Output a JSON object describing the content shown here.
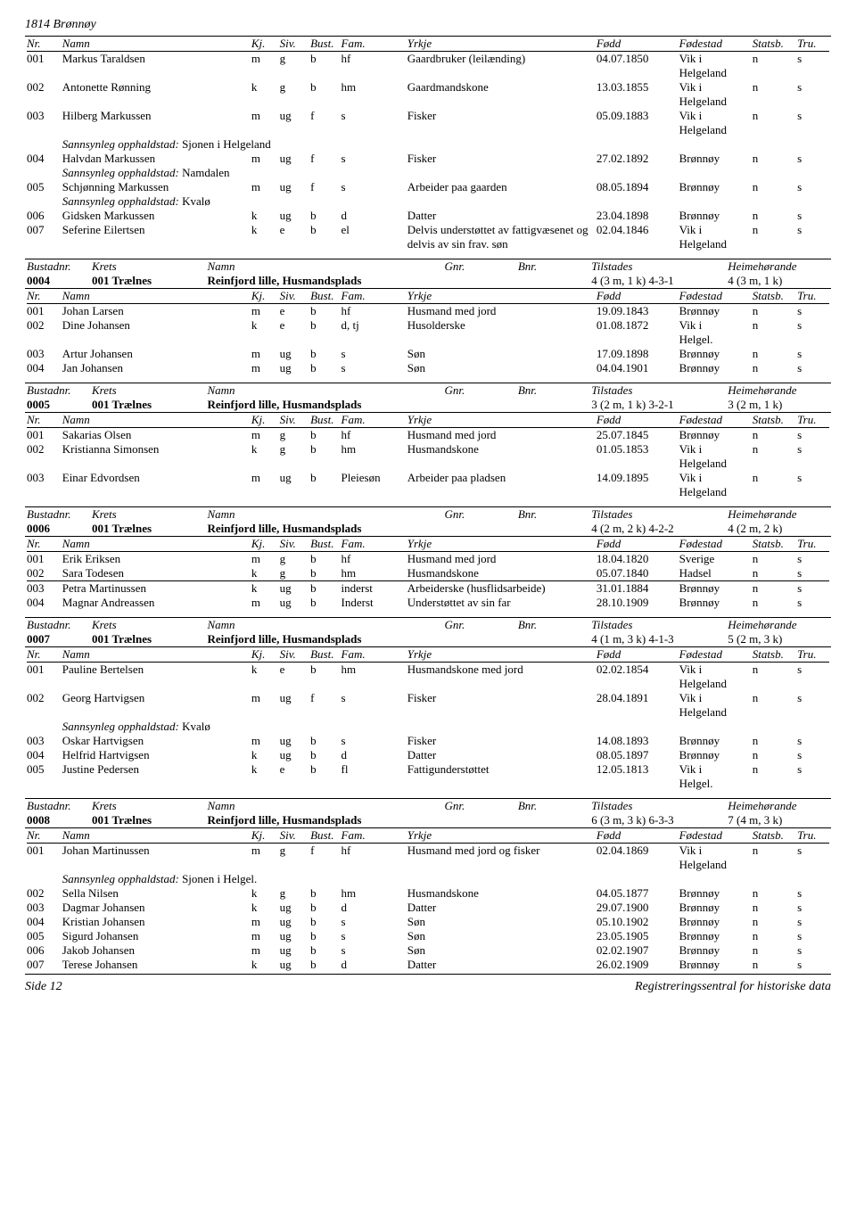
{
  "pageHeader": "1814 Brønnøy",
  "footerLeft": "Side 12",
  "footerRight": "Registreringssentral for historiske data",
  "personHeader": {
    "nr": "Nr.",
    "namn": "Namn",
    "kj": "Kj.",
    "siv": "Siv.",
    "bust": "Bust.",
    "fam": "Fam.",
    "yrkje": "Yrkje",
    "fodd": "Fødd",
    "fodestad": "Fødestad",
    "statsb": "Statsb.",
    "tru": "Tru."
  },
  "bustadHeader": {
    "bustadnr": "Bustadnr.",
    "krets": "Krets",
    "namn": "Namn",
    "gnr": "Gnr.",
    "bnr": "Bnr.",
    "tilstades": "Tilstades",
    "heimehorande": "Heimehørande"
  },
  "sannsynlegLabel": "Sannsynleg opphaldstad:",
  "topPeople": [
    {
      "nr": "001",
      "namn": "Markus Taraldsen",
      "kj": "m",
      "siv": "g",
      "bust": "b",
      "fam": "hf",
      "yrkje": "Gaardbruker (leilænding)",
      "fodd": "04.07.1850",
      "fodestad": "Vik i Helgeland",
      "statsb": "n",
      "tru": "s"
    },
    {
      "nr": "002",
      "namn": "Antonette Rønning",
      "kj": "k",
      "siv": "g",
      "bust": "b",
      "fam": "hm",
      "yrkje": "Gaardmandskone",
      "fodd": "13.03.1855",
      "fodestad": "Vik i Helgeland",
      "statsb": "n",
      "tru": "s"
    },
    {
      "nr": "003",
      "namn": "Hilberg Markussen",
      "kj": "m",
      "siv": "ug",
      "bust": "f",
      "fam": "s",
      "yrkje": "Fisker",
      "fodd": "05.09.1883",
      "fodestad": "Vik i Helgeland",
      "statsb": "n",
      "tru": "s",
      "sann": "Sjonen i Helgeland"
    },
    {
      "nr": "004",
      "namn": "Halvdan Markussen",
      "kj": "m",
      "siv": "ug",
      "bust": "f",
      "fam": "s",
      "yrkje": "Fisker",
      "fodd": "27.02.1892",
      "fodestad": "Brønnøy",
      "statsb": "n",
      "tru": "s",
      "sann": "Namdalen"
    },
    {
      "nr": "005",
      "namn": "Schjønning Markussen",
      "kj": "m",
      "siv": "ug",
      "bust": "f",
      "fam": "s",
      "yrkje": "Arbeider paa gaarden",
      "fodd": "08.05.1894",
      "fodestad": "Brønnøy",
      "statsb": "n",
      "tru": "s",
      "sann": "Kvalø"
    },
    {
      "nr": "006",
      "namn": "Gidsken Markussen",
      "kj": "k",
      "siv": "ug",
      "bust": "b",
      "fam": "d",
      "yrkje": "Datter",
      "fodd": "23.04.1898",
      "fodestad": "Brønnøy",
      "statsb": "n",
      "tru": "s"
    },
    {
      "nr": "007",
      "namn": "Seferine Eilertsen",
      "kj": "k",
      "siv": "e",
      "bust": "b",
      "fam": "el",
      "yrkje": "Delvis understøttet av fattigvæsenet og delvis av sin frav. søn",
      "fodd": "02.04.1846",
      "fodestad": "Vik i Helgeland",
      "statsb": "n",
      "tru": "s"
    }
  ],
  "blocks": [
    {
      "bustad": {
        "nr": "0004",
        "krets": "001 Trælnes",
        "namn": "Reinfjord lille, Husmandsplads",
        "tilstades": "4 (3 m, 1 k) 4-3-1",
        "heime": "4 (3 m, 1 k)"
      },
      "people": [
        {
          "nr": "001",
          "namn": "Johan Larsen",
          "kj": "m",
          "siv": "e",
          "bust": "b",
          "fam": "hf",
          "yrkje": "Husmand med jord",
          "fodd": "19.09.1843",
          "fodestad": "Brønnøy",
          "statsb": "n",
          "tru": "s"
        },
        {
          "nr": "002",
          "namn": "Dine Johansen",
          "kj": "k",
          "siv": "e",
          "bust": "b",
          "fam": "d, tj",
          "yrkje": "Husolderske",
          "fodd": "01.08.1872",
          "fodestad": "Vik i Helgel.",
          "statsb": "n",
          "tru": "s"
        },
        {
          "nr": "003",
          "namn": "Artur Johansen",
          "kj": "m",
          "siv": "ug",
          "bust": "b",
          "fam": "s",
          "yrkje": "Søn",
          "fodd": "17.09.1898",
          "fodestad": "Brønnøy",
          "statsb": "n",
          "tru": "s"
        },
        {
          "nr": "004",
          "namn": "Jan Johansen",
          "kj": "m",
          "siv": "ug",
          "bust": "b",
          "fam": "s",
          "yrkje": "Søn",
          "fodd": "04.04.1901",
          "fodestad": "Brønnøy",
          "statsb": "n",
          "tru": "s"
        }
      ]
    },
    {
      "bustad": {
        "nr": "0005",
        "krets": "001 Trælnes",
        "namn": "Reinfjord lille, Husmandsplads",
        "tilstades": "3 (2 m, 1 k) 3-2-1",
        "heime": "3 (2 m, 1 k)"
      },
      "people": [
        {
          "nr": "001",
          "namn": "Sakarias Olsen",
          "kj": "m",
          "siv": "g",
          "bust": "b",
          "fam": "hf",
          "yrkje": "Husmand med jord",
          "fodd": "25.07.1845",
          "fodestad": "Brønnøy",
          "statsb": "n",
          "tru": "s"
        },
        {
          "nr": "002",
          "namn": "Kristianna Simonsen",
          "kj": "k",
          "siv": "g",
          "bust": "b",
          "fam": "hm",
          "yrkje": "Husmandskone",
          "fodd": "01.05.1853",
          "fodestad": "Vik i Helgeland",
          "statsb": "n",
          "tru": "s"
        },
        {
          "nr": "003",
          "namn": "Einar Edvordsen",
          "kj": "m",
          "siv": "ug",
          "bust": "b",
          "fam": "Pleiesøn",
          "yrkje": "Arbeider paa pladsen",
          "fodd": "14.09.1895",
          "fodestad": "Vik i Helgeland",
          "statsb": "n",
          "tru": "s"
        }
      ]
    },
    {
      "bustad": {
        "nr": "0006",
        "krets": "001 Trælnes",
        "namn": "Reinfjord lille, Husmandsplads",
        "tilstades": "4 (2 m, 2 k) 4-2-2",
        "heime": "4 (2 m, 2 k)"
      },
      "people": [
        {
          "nr": "001",
          "namn": "Erik Eriksen",
          "kj": "m",
          "siv": "g",
          "bust": "b",
          "fam": "hf",
          "yrkje": "Husmand med jord",
          "fodd": "18.04.1820",
          "fodestad": "Sverige",
          "statsb": "n",
          "tru": "s"
        },
        {
          "nr": "002",
          "namn": "Sara Todesen",
          "kj": "k",
          "siv": "g",
          "bust": "b",
          "fam": "hm",
          "yrkje": "Husmandskone",
          "fodd": "05.07.1840",
          "fodestad": "Hadsel",
          "statsb": "n",
          "tru": "s",
          "ruleAfter": true
        },
        {
          "nr": "003",
          "namn": "Petra Martinussen",
          "kj": "k",
          "siv": "ug",
          "bust": "b",
          "fam": "inderst",
          "yrkje": "Arbeiderske (husflidsarbeide)",
          "fodd": "31.01.1884",
          "fodestad": "Brønnøy",
          "statsb": "n",
          "tru": "s"
        },
        {
          "nr": "004",
          "namn": "Magnar Andreassen",
          "kj": "m",
          "siv": "ug",
          "bust": "b",
          "fam": "Inderst",
          "yrkje": "Understøttet av sin far",
          "fodd": "28.10.1909",
          "fodestad": "Brønnøy",
          "statsb": "n",
          "tru": "s"
        }
      ]
    },
    {
      "bustad": {
        "nr": "0007",
        "krets": "001 Trælnes",
        "namn": "Reinfjord lille, Husmandsplads",
        "tilstades": "4 (1 m, 3 k) 4-1-3",
        "heime": "5 (2 m, 3 k)"
      },
      "people": [
        {
          "nr": "001",
          "namn": "Pauline Bertelsen",
          "kj": "k",
          "siv": "e",
          "bust": "b",
          "fam": "hm",
          "yrkje": "Husmandskone med jord",
          "fodd": "02.02.1854",
          "fodestad": "Vik i Helgeland",
          "statsb": "n",
          "tru": "s"
        },
        {
          "nr": "002",
          "namn": "Georg Hartvigsen",
          "kj": "m",
          "siv": "ug",
          "bust": "f",
          "fam": "s",
          "yrkje": "Fisker",
          "fodd": "28.04.1891",
          "fodestad": "Vik i Helgeland",
          "statsb": "n",
          "tru": "s",
          "sann": "Kvalø"
        },
        {
          "nr": "003",
          "namn": "Oskar Hartvigsen",
          "kj": "m",
          "siv": "ug",
          "bust": "b",
          "fam": "s",
          "yrkje": "Fisker",
          "fodd": "14.08.1893",
          "fodestad": "Brønnøy",
          "statsb": "n",
          "tru": "s"
        },
        {
          "nr": "004",
          "namn": "Helfrid Hartvigsen",
          "kj": "k",
          "siv": "ug",
          "bust": "b",
          "fam": "d",
          "yrkje": "Datter",
          "fodd": "08.05.1897",
          "fodestad": "Brønnøy",
          "statsb": "n",
          "tru": "s"
        },
        {
          "nr": "005",
          "namn": "Justine Pedersen",
          "kj": "k",
          "siv": "e",
          "bust": "b",
          "fam": "fl",
          "yrkje": "Fattigunderstøttet",
          "fodd": "12.05.1813",
          "fodestad": "Vik i Helgel.",
          "statsb": "n",
          "tru": "s"
        }
      ]
    },
    {
      "bustad": {
        "nr": "0008",
        "krets": "001 Trælnes",
        "namn": "Reinfjord lille, Husmandsplads",
        "tilstades": "6 (3 m, 3 k) 6-3-3",
        "heime": "7 (4 m, 3 k)"
      },
      "people": [
        {
          "nr": "001",
          "namn": "Johan Martinussen",
          "kj": "m",
          "siv": "g",
          "bust": "f",
          "fam": "hf",
          "yrkje": "Husmand med jord og fisker",
          "fodd": "02.04.1869",
          "fodestad": "Vik i Helgeland",
          "statsb": "n",
          "tru": "s",
          "sann": "Sjonen i Helgel."
        },
        {
          "nr": "002",
          "namn": "Sella Nilsen",
          "kj": "k",
          "siv": "g",
          "bust": "b",
          "fam": "hm",
          "yrkje": "Husmandskone",
          "fodd": "04.05.1877",
          "fodestad": "Brønnøy",
          "statsb": "n",
          "tru": "s"
        },
        {
          "nr": "003",
          "namn": "Dagmar Johansen",
          "kj": "k",
          "siv": "ug",
          "bust": "b",
          "fam": "d",
          "yrkje": "Datter",
          "fodd": "29.07.1900",
          "fodestad": "Brønnøy",
          "statsb": "n",
          "tru": "s"
        },
        {
          "nr": "004",
          "namn": "Kristian Johansen",
          "kj": "m",
          "siv": "ug",
          "bust": "b",
          "fam": "s",
          "yrkje": "Søn",
          "fodd": "05.10.1902",
          "fodestad": "Brønnøy",
          "statsb": "n",
          "tru": "s"
        },
        {
          "nr": "005",
          "namn": "Sigurd Johansen",
          "kj": "m",
          "siv": "ug",
          "bust": "b",
          "fam": "s",
          "yrkje": "Søn",
          "fodd": "23.05.1905",
          "fodestad": "Brønnøy",
          "statsb": "n",
          "tru": "s"
        },
        {
          "nr": "006",
          "namn": "Jakob Johansen",
          "kj": "m",
          "siv": "ug",
          "bust": "b",
          "fam": "s",
          "yrkje": "Søn",
          "fodd": "02.02.1907",
          "fodestad": "Brønnøy",
          "statsb": "n",
          "tru": "s"
        },
        {
          "nr": "007",
          "namn": "Terese Johansen",
          "kj": "k",
          "siv": "ug",
          "bust": "b",
          "fam": "d",
          "yrkje": "Datter",
          "fodd": "26.02.1909",
          "fodestad": "Brønnøy",
          "statsb": "n",
          "tru": "s"
        }
      ]
    }
  ]
}
